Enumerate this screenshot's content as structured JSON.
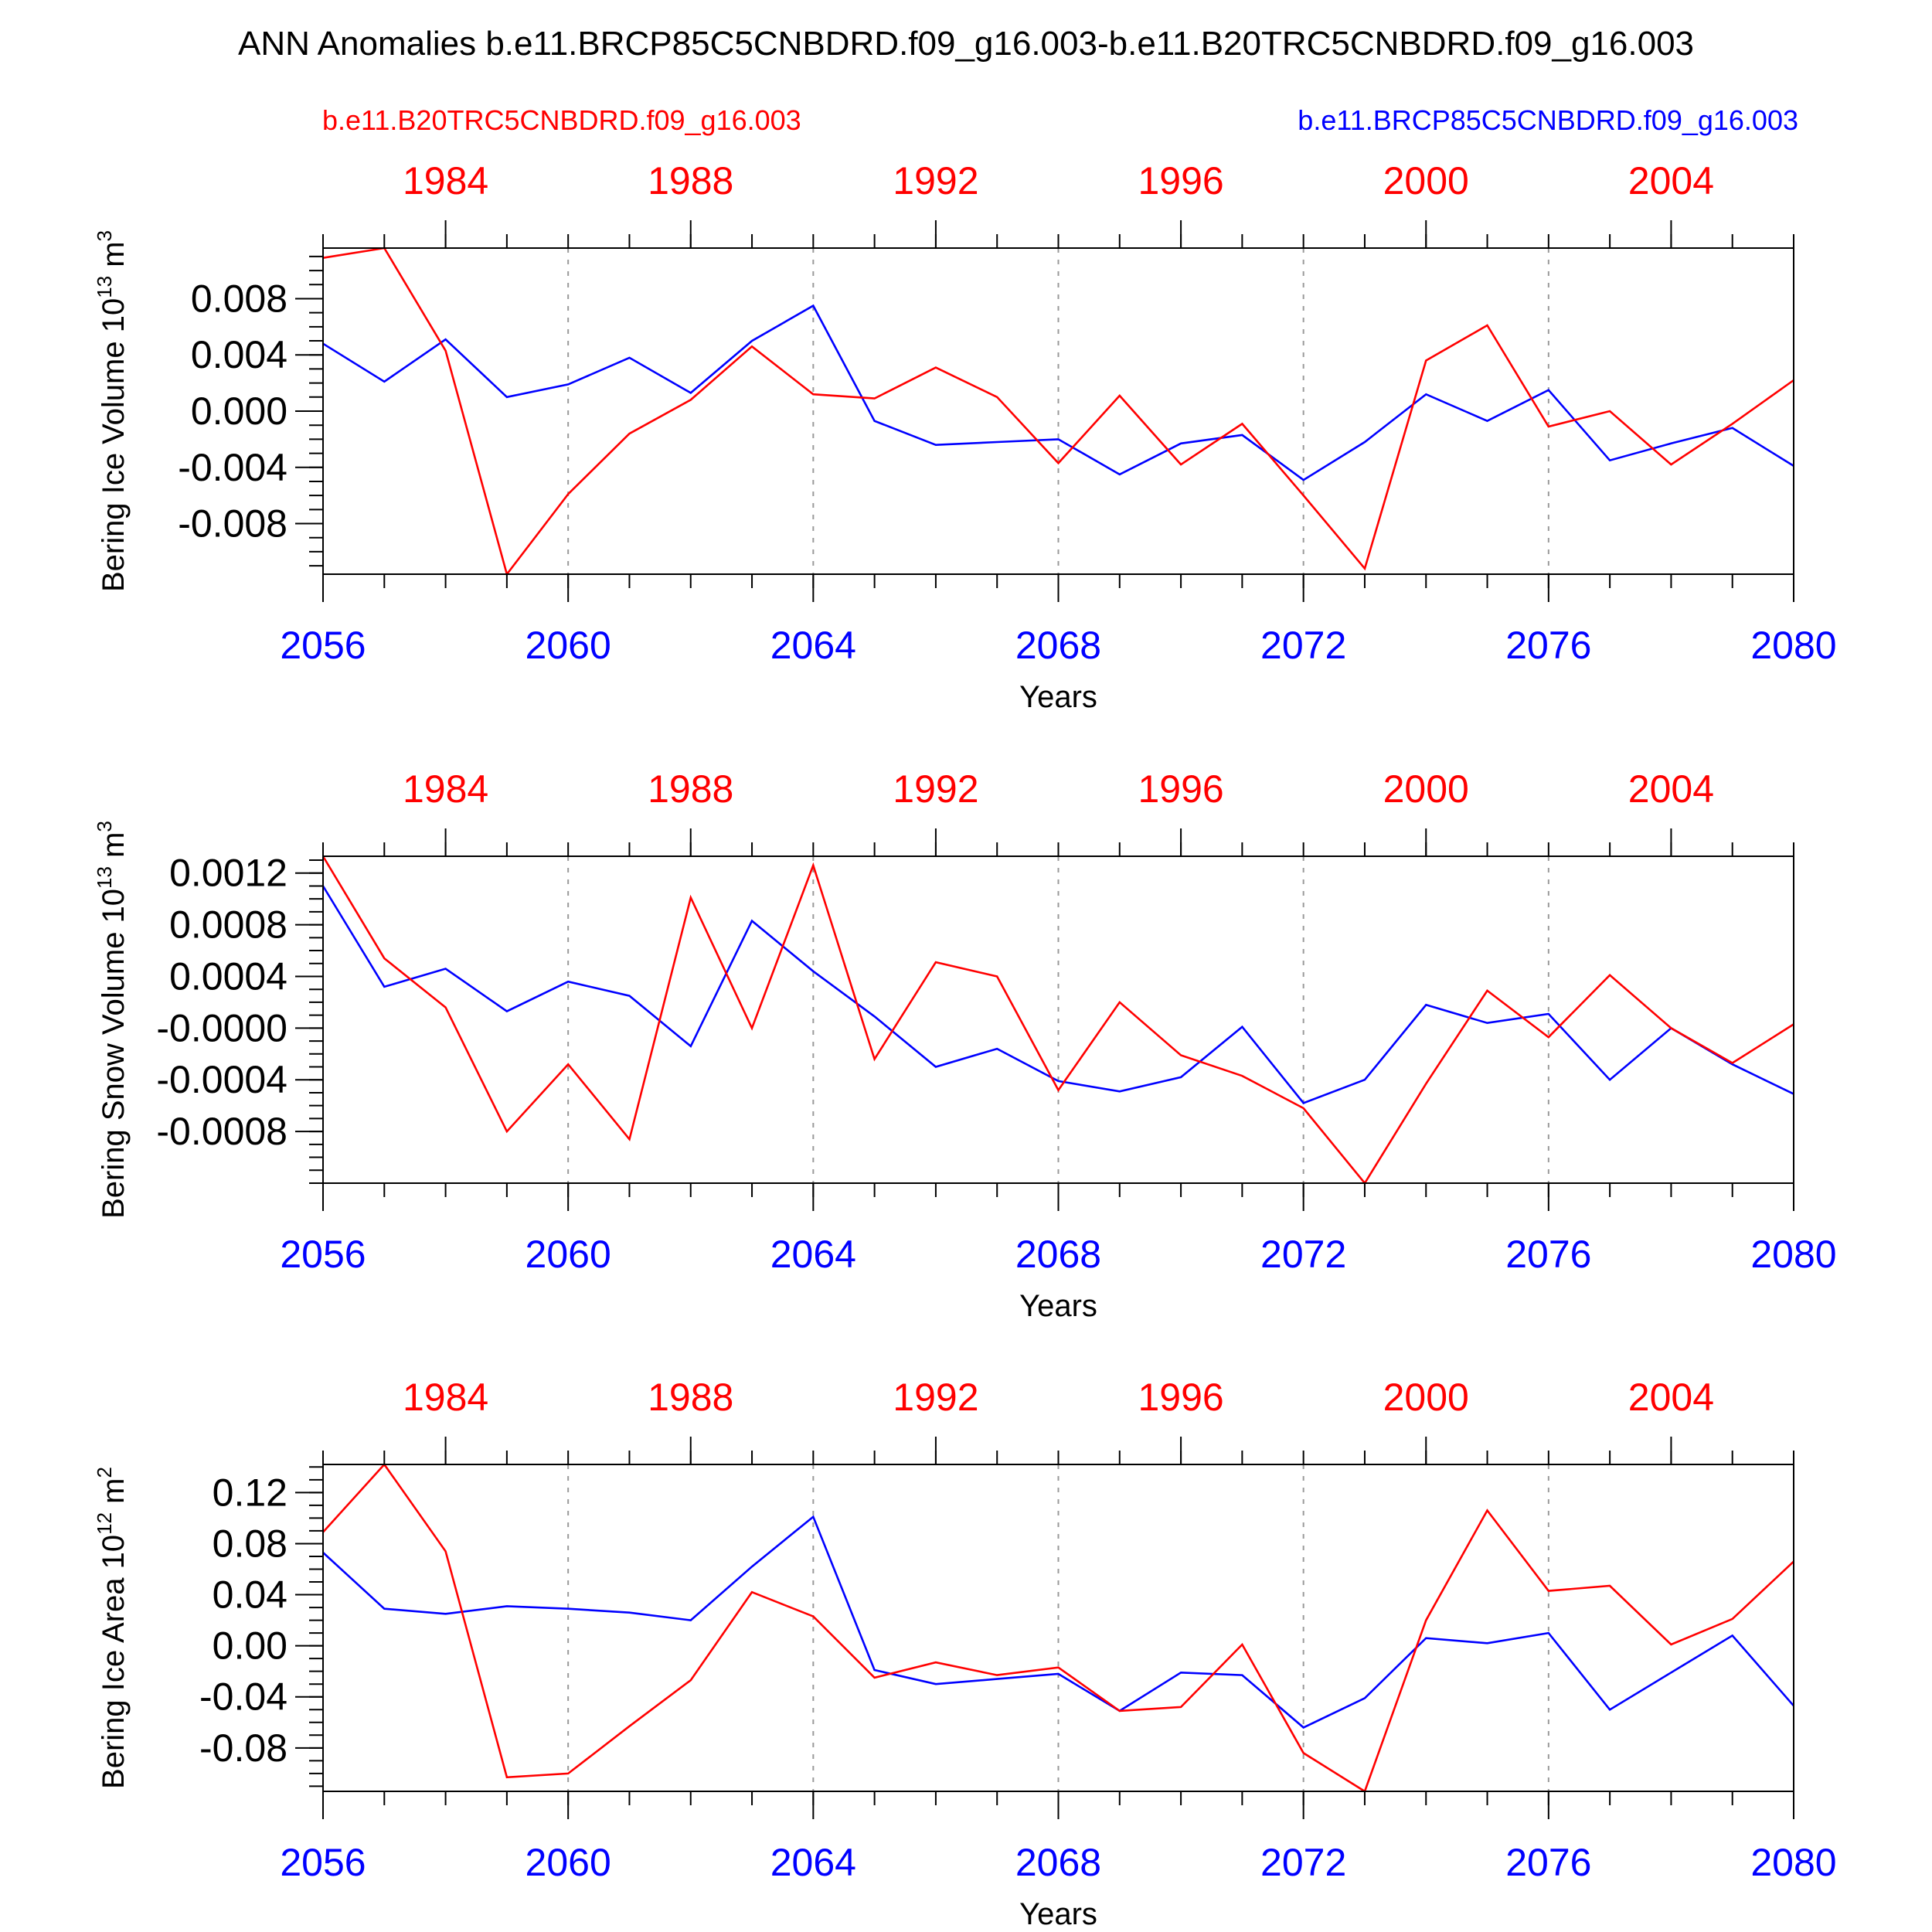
{
  "title": "ANN Anomalies b.e11.BRCP85C5CNBDRD.f09_g16.003-b.e11.B20TRC5CNBDRD.f09_g16.003",
  "legend": {
    "left": {
      "text": "b.e11.B20TRC5CNBDRD.f09_g16.003",
      "color": "#ff0000"
    },
    "right": {
      "text": "b.e11.BRCP85C5CNBDRD.f09_g16.003",
      "color": "#0000ff"
    }
  },
  "colors": {
    "historical": "#ff0000",
    "rcp85": "#0000ff",
    "axis": "#000000",
    "grid": "#9a9a9a"
  },
  "chart_data": [
    {
      "type": "line",
      "ylabel": "Bering Ice Volume 10",
      "ylabel_exp": "13",
      "ylabel_unit": " m",
      "ylabel_unit_exp": "3",
      "xlabel": "Years",
      "xlim": [
        2056,
        2080
      ],
      "ylim": [
        -0.0116,
        0.0116
      ],
      "yticks": [
        -0.008,
        -0.004,
        0.0,
        0.004,
        0.008
      ],
      "ytick_labels": [
        "-0.008",
        "-0.004",
        "0.000",
        "0.004",
        "0.008"
      ],
      "x": [
        2056,
        2057,
        2058,
        2059,
        2060,
        2061,
        2062,
        2063,
        2064,
        2065,
        2066,
        2067,
        2068,
        2069,
        2070,
        2071,
        2072,
        2073,
        2074,
        2075,
        2076,
        2077,
        2078,
        2079,
        2080
      ],
      "series": [
        {
          "name": "b.e11.BRCP85C5CNBDRD.f09_g16.003",
          "color": "#0000ff",
          "values": [
            0.0048,
            0.0021,
            0.0051,
            0.001,
            0.0019,
            0.0038,
            0.0013,
            0.005,
            0.0075,
            -0.0007,
            -0.0024,
            -0.0022,
            -0.002,
            -0.0045,
            -0.0023,
            -0.0017,
            -0.0049,
            -0.0022,
            0.0012,
            -0.0007,
            0.0015,
            -0.0035,
            -0.0023,
            -0.0012,
            -0.0039
          ]
        },
        {
          "name": "b.e11.B20TRC5CNBDRD.f09_g16.003",
          "color": "#ff0000",
          "values": [
            0.0109,
            0.0116,
            0.0043,
            -0.0116,
            -0.0059,
            -0.0016,
            0.0008,
            0.0046,
            0.0012,
            0.0009,
            0.0031,
            0.001,
            -0.0037,
            0.0011,
            -0.0038,
            -0.0009,
            -0.006,
            -0.0112,
            0.0036,
            0.0061,
            -0.0011,
            0.0,
            -0.0038,
            -0.0009,
            0.0022
          ]
        }
      ]
    },
    {
      "type": "line",
      "ylabel": "Bering Snow Volume 10",
      "ylabel_exp": "13",
      "ylabel_unit": " m",
      "ylabel_unit_exp": "3",
      "xlabel": "Years",
      "xlim": [
        2056,
        2080
      ],
      "ylim": [
        -0.0012,
        0.00133
      ],
      "yticks": [
        -0.0008,
        -0.0004,
        0.0,
        0.0004,
        0.0008,
        0.0012
      ],
      "ytick_labels": [
        "-0.0008",
        "-0.0004",
        "-0.0000",
        "0.0004",
        "0.0008",
        "0.0012"
      ],
      "x": [
        2056,
        2057,
        2058,
        2059,
        2060,
        2061,
        2062,
        2063,
        2064,
        2065,
        2066,
        2067,
        2068,
        2069,
        2070,
        2071,
        2072,
        2073,
        2074,
        2075,
        2076,
        2077,
        2078,
        2079,
        2080
      ],
      "series": [
        {
          "name": "b.e11.BRCP85C5CNBDRD.f09_g16.003",
          "color": "#0000ff",
          "values": [
            0.0011,
            0.00032,
            0.00046,
            0.00013,
            0.00036,
            0.00025,
            -0.00014,
            0.00083,
            0.00044,
            9e-05,
            -0.0003,
            -0.00016,
            -0.00041,
            -0.00049,
            -0.00038,
            1e-05,
            -0.00058,
            -0.0004,
            0.00018,
            4e-05,
            0.00011,
            -0.0004,
            0.0,
            -0.00028,
            -0.00051
          ]
        },
        {
          "name": "b.e11.B20TRC5CNBDRD.f09_g16.003",
          "color": "#ff0000",
          "values": [
            0.00133,
            0.00054,
            0.00016,
            -0.0008,
            -0.00028,
            -0.00086,
            0.00101,
            0.0,
            0.00126,
            -0.00024,
            0.00051,
            0.0004,
            -0.00048,
            0.0002,
            -0.00021,
            -0.00037,
            -0.00062,
            -0.0012,
            -0.00043,
            0.00029,
            -7e-05,
            0.00041,
            0.0,
            -0.00027,
            3e-05
          ]
        }
      ]
    },
    {
      "type": "line",
      "ylabel": "Bering Ice Area 10",
      "ylabel_exp": "12",
      "ylabel_unit": " m",
      "ylabel_unit_exp": "2",
      "xlabel": "Years",
      "xlim": [
        2056,
        2080
      ],
      "ylim": [
        -0.114,
        0.142
      ],
      "yticks": [
        -0.08,
        -0.04,
        0.0,
        0.04,
        0.08,
        0.12
      ],
      "ytick_labels": [
        "-0.08",
        "-0.04",
        "0.00",
        "0.04",
        "0.08",
        "0.12"
      ],
      "x": [
        2056,
        2057,
        2058,
        2059,
        2060,
        2061,
        2062,
        2063,
        2064,
        2065,
        2066,
        2067,
        2068,
        2069,
        2070,
        2071,
        2072,
        2073,
        2074,
        2075,
        2076,
        2077,
        2078,
        2079,
        2080
      ],
      "series": [
        {
          "name": "b.e11.BRCP85C5CNBDRD.f09_g16.003",
          "color": "#0000ff",
          "values": [
            0.073,
            0.029,
            0.025,
            0.031,
            0.029,
            0.026,
            0.02,
            0.062,
            0.101,
            -0.019,
            -0.03,
            -0.026,
            -0.022,
            -0.051,
            -0.021,
            -0.023,
            -0.064,
            -0.041,
            0.006,
            0.002,
            0.01,
            -0.05,
            -0.021,
            0.008,
            -0.047
          ]
        },
        {
          "name": "b.e11.B20TRC5CNBDRD.f09_g16.003",
          "color": "#ff0000",
          "values": [
            0.089,
            0.142,
            0.074,
            -0.103,
            -0.1,
            -0.063,
            -0.027,
            0.042,
            0.023,
            -0.025,
            -0.013,
            -0.023,
            -0.017,
            -0.051,
            -0.048,
            0.001,
            -0.084,
            -0.114,
            0.02,
            0.106,
            0.043,
            0.047,
            0.001,
            0.021,
            0.066
          ]
        }
      ]
    }
  ],
  "bottom_axis": {
    "ticks": [
      2056,
      2060,
      2064,
      2068,
      2072,
      2076,
      2080
    ],
    "labels": [
      "2056",
      "2060",
      "2064",
      "2068",
      "2072",
      "2076",
      "2080"
    ],
    "color": "#0000ff"
  },
  "top_axis": {
    "ticks": [
      2058,
      2062,
      2066,
      2070,
      2074,
      2078
    ],
    "labels": [
      "1984",
      "1988",
      "1992",
      "1996",
      "2000",
      "2004"
    ],
    "color": "#ff0000"
  },
  "grid_years": [
    2060,
    2064,
    2068,
    2072,
    2076
  ]
}
